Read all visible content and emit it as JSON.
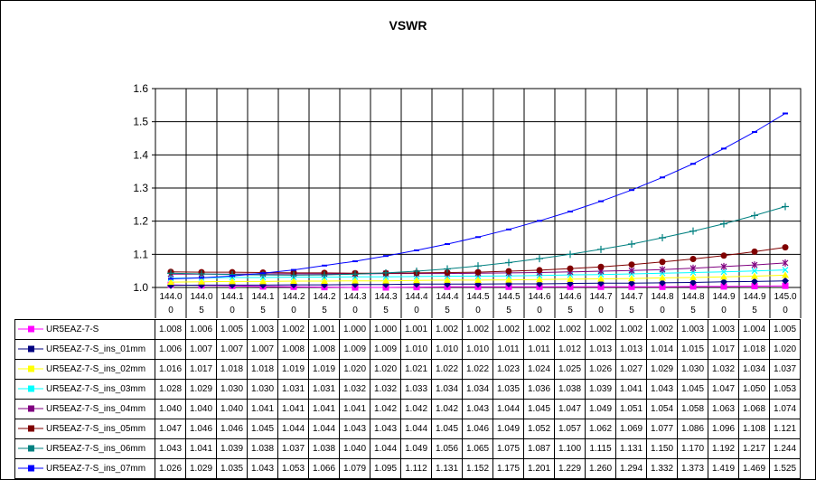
{
  "chart_data": {
    "type": "line",
    "title": "VSWR",
    "xlabel": "",
    "ylabel": "",
    "ylim": [
      1.0,
      1.6
    ],
    "y_ticks": [
      "1.0",
      "1.1",
      "1.2",
      "1.3",
      "1.4",
      "1.5",
      "1.6"
    ],
    "grid": true,
    "legend": "data-table",
    "categories": [
      "144.00",
      "144.05",
      "144.10",
      "144.15",
      "144.20",
      "144.25",
      "144.30",
      "144.35",
      "144.40",
      "144.45",
      "144.50",
      "144.55",
      "144.60",
      "144.65",
      "144.70",
      "144.75",
      "144.80",
      "144.85",
      "144.90",
      "144.95",
      "145.00"
    ],
    "x_tick_lines": [
      [
        "144.0",
        "0"
      ],
      [
        "144.0",
        "5"
      ],
      [
        "144.1",
        "0"
      ],
      [
        "144.1",
        "5"
      ],
      [
        "144.2",
        "0"
      ],
      [
        "144.2",
        "5"
      ],
      [
        "144.3",
        "0"
      ],
      [
        "144.3",
        "5"
      ],
      [
        "144.4",
        "0"
      ],
      [
        "144.4",
        "5"
      ],
      [
        "144.5",
        "0"
      ],
      [
        "144.5",
        "5"
      ],
      [
        "144.6",
        "0"
      ],
      [
        "144.6",
        "5"
      ],
      [
        "144.7",
        "0"
      ],
      [
        "144.7",
        "5"
      ],
      [
        "144.8",
        "0"
      ],
      [
        "144.8",
        "5"
      ],
      [
        "144.9",
        "0"
      ],
      [
        "144.9",
        "5"
      ],
      [
        "145.0",
        "0"
      ]
    ],
    "series": [
      {
        "name": "UR5EAZ-7-S",
        "color": "#ff00ff",
        "marker": "square",
        "values": [
          "1.008",
          "1.006",
          "1.005",
          "1.003",
          "1.002",
          "1.001",
          "1.000",
          "1.000",
          "1.001",
          "1.002",
          "1.002",
          "1.002",
          "1.002",
          "1.002",
          "1.002",
          "1.002",
          "1.002",
          "1.003",
          "1.003",
          "1.004",
          "1.005"
        ]
      },
      {
        "name": "UR5EAZ-7-S_ins_01mm",
        "color": "#000080",
        "marker": "diamond",
        "values": [
          "1.006",
          "1.007",
          "1.007",
          "1.007",
          "1.008",
          "1.008",
          "1.009",
          "1.009",
          "1.010",
          "1.010",
          "1.010",
          "1.011",
          "1.011",
          "1.012",
          "1.013",
          "1.013",
          "1.014",
          "1.015",
          "1.017",
          "1.018",
          "1.020"
        ]
      },
      {
        "name": "UR5EAZ-7-S_ins_02mm",
        "color": "#ffff00",
        "marker": "triangle",
        "values": [
          "1.016",
          "1.017",
          "1.018",
          "1.018",
          "1.019",
          "1.019",
          "1.020",
          "1.020",
          "1.021",
          "1.022",
          "1.022",
          "1.023",
          "1.024",
          "1.025",
          "1.026",
          "1.027",
          "1.029",
          "1.030",
          "1.032",
          "1.034",
          "1.037"
        ]
      },
      {
        "name": "UR5EAZ-7-S_ins_03mm",
        "color": "#00ffff",
        "marker": "x",
        "values": [
          "1.028",
          "1.029",
          "1.030",
          "1.030",
          "1.031",
          "1.031",
          "1.032",
          "1.032",
          "1.033",
          "1.034",
          "1.034",
          "1.035",
          "1.036",
          "1.038",
          "1.039",
          "1.041",
          "1.043",
          "1.045",
          "1.047",
          "1.050",
          "1.053"
        ]
      },
      {
        "name": "UR5EAZ-7-S_ins_04mm",
        "color": "#800080",
        "marker": "star",
        "values": [
          "1.040",
          "1.040",
          "1.040",
          "1.041",
          "1.041",
          "1.041",
          "1.041",
          "1.042",
          "1.042",
          "1.042",
          "1.043",
          "1.044",
          "1.045",
          "1.047",
          "1.049",
          "1.051",
          "1.054",
          "1.058",
          "1.063",
          "1.068",
          "1.074"
        ]
      },
      {
        "name": "UR5EAZ-7-S_ins_05mm",
        "color": "#800000",
        "marker": "circle",
        "values": [
          "1.047",
          "1.046",
          "1.046",
          "1.045",
          "1.044",
          "1.044",
          "1.043",
          "1.043",
          "1.044",
          "1.045",
          "1.046",
          "1.049",
          "1.052",
          "1.057",
          "1.062",
          "1.069",
          "1.077",
          "1.086",
          "1.096",
          "1.108",
          "1.121"
        ]
      },
      {
        "name": "UR5EAZ-7-S_ins_06mm",
        "color": "#008080",
        "marker": "plus",
        "values": [
          "1.043",
          "1.041",
          "1.039",
          "1.038",
          "1.037",
          "1.038",
          "1.040",
          "1.044",
          "1.049",
          "1.056",
          "1.065",
          "1.075",
          "1.087",
          "1.100",
          "1.115",
          "1.131",
          "1.150",
          "1.170",
          "1.192",
          "1.217",
          "1.244"
        ]
      },
      {
        "name": "UR5EAZ-7-S_ins_07mm",
        "color": "#0000ff",
        "marker": "dash",
        "values": [
          "1.026",
          "1.029",
          "1.035",
          "1.043",
          "1.053",
          "1.066",
          "1.079",
          "1.095",
          "1.112",
          "1.131",
          "1.152",
          "1.175",
          "1.201",
          "1.229",
          "1.260",
          "1.294",
          "1.332",
          "1.373",
          "1.419",
          "1.469",
          "1.525"
        ]
      }
    ]
  }
}
